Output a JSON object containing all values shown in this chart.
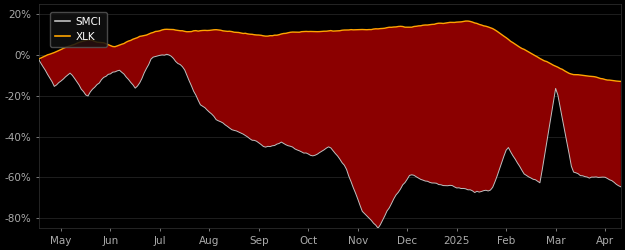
{
  "background_color": "#000000",
  "plot_bg_color": "#000000",
  "smci_color": "#c0c0c0",
  "xlk_color": "#FFA500",
  "fill_color": "#8B0000",
  "legend_bg": "#111111",
  "legend_border": "#555555",
  "tick_color": "#aaaaaa",
  "grid_color": "#2a2a2a",
  "ylim": [
    -85,
    25
  ],
  "yticks": [
    20,
    0,
    -20,
    -40,
    -60,
    -80
  ],
  "ytick_labels": [
    "20%",
    "0%",
    "-20%",
    "-40%",
    "-60%",
    "-80%"
  ],
  "xlabel_months": [
    "May",
    "Jun",
    "Jul",
    "Aug",
    "Sep",
    "Oct",
    "Nov",
    "Dec",
    "2025",
    "Feb",
    "Mar",
    "Apr"
  ],
  "smci_label": "SMCI",
  "xlk_label": "XLK",
  "n": 260
}
